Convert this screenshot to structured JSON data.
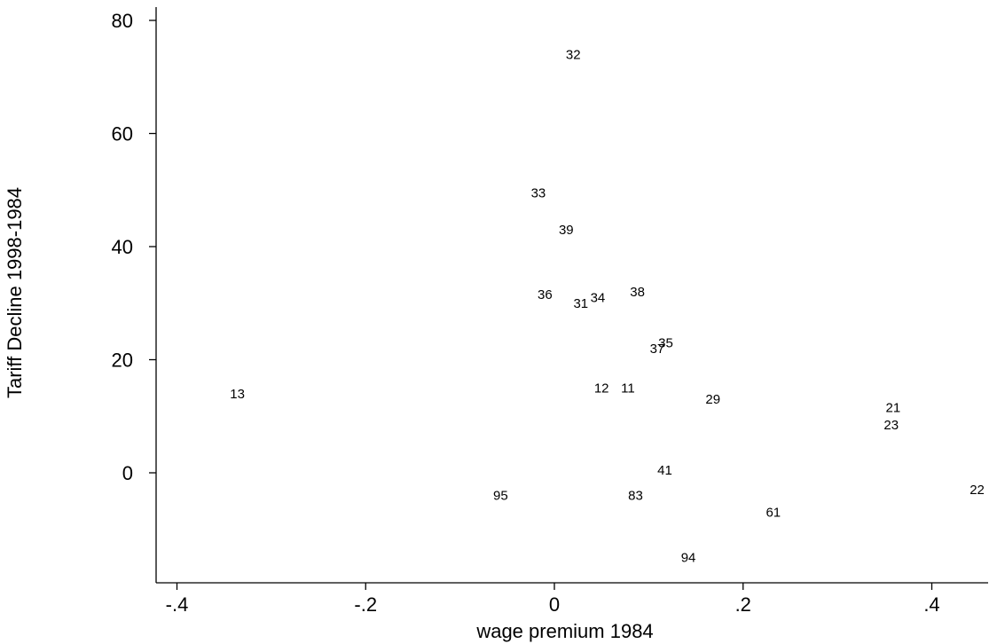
{
  "chart_data": {
    "type": "scatter",
    "title": "",
    "xlabel": "wage premium 1984",
    "ylabel": "Tariff Decline 1998-1984",
    "xlim": [
      -0.41,
      0.46
    ],
    "ylim": [
      -19,
      83
    ],
    "grid": false,
    "legend": "none",
    "x_ticks": [
      {
        "value": -0.4,
        "label": "-.4"
      },
      {
        "value": -0.2,
        "label": "-.2"
      },
      {
        "value": 0,
        "label": "0"
      },
      {
        "value": 0.2,
        "label": ".2"
      },
      {
        "value": 0.4,
        "label": ".4"
      }
    ],
    "y_ticks": [
      {
        "value": 0,
        "label": "0"
      },
      {
        "value": 20,
        "label": "20"
      },
      {
        "value": 40,
        "label": "40"
      },
      {
        "value": 60,
        "label": "60"
      },
      {
        "value": 80,
        "label": "80"
      }
    ],
    "points": [
      {
        "label": "32",
        "x": 0.02,
        "y": 74
      },
      {
        "label": "33",
        "x": -0.017,
        "y": 49.5
      },
      {
        "label": "39",
        "x": 0.0125,
        "y": 43
      },
      {
        "label": "36",
        "x": -0.01,
        "y": 31.5
      },
      {
        "label": "31",
        "x": 0.028,
        "y": 30
      },
      {
        "label": "34",
        "x": 0.046,
        "y": 31
      },
      {
        "label": "38",
        "x": 0.088,
        "y": 32
      },
      {
        "label": "35",
        "x": 0.118,
        "y": 23
      },
      {
        "label": "37",
        "x": 0.109,
        "y": 22
      },
      {
        "label": "12",
        "x": 0.05,
        "y": 15
      },
      {
        "label": "11",
        "x": 0.078,
        "y": 15
      },
      {
        "label": "13",
        "x": -0.336,
        "y": 14
      },
      {
        "label": "29",
        "x": 0.168,
        "y": 13
      },
      {
        "label": "21",
        "x": 0.359,
        "y": 11.5
      },
      {
        "label": "23",
        "x": 0.357,
        "y": 8.5
      },
      {
        "label": "41",
        "x": 0.117,
        "y": 0.5
      },
      {
        "label": "95",
        "x": -0.057,
        "y": -4
      },
      {
        "label": "83",
        "x": 0.086,
        "y": -4
      },
      {
        "label": "22",
        "x": 0.448,
        "y": -3
      },
      {
        "label": "61",
        "x": 0.232,
        "y": -7
      },
      {
        "label": "94",
        "x": 0.142,
        "y": -15
      }
    ]
  }
}
